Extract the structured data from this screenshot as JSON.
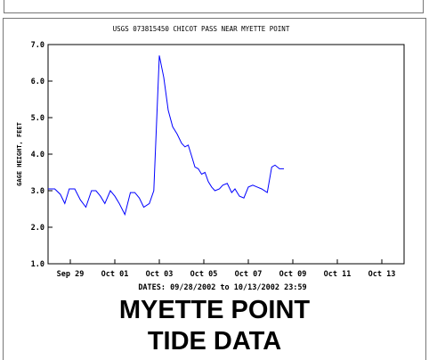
{
  "chart_data": {
    "type": "line",
    "title": "USGS 073815450 CHICOT PASS NEAR MYETTE POINT",
    "xlabel": "DATES: 09/28/2002 to 10/13/2002 23:59",
    "ylabel": "GAGE HEIGHT, FEET",
    "xlim": [
      0,
      16
    ],
    "ylim": [
      1.0,
      7.0
    ],
    "yticks": [
      1.0,
      2.0,
      3.0,
      4.0,
      5.0,
      6.0,
      7.0
    ],
    "ytick_labels": [
      "1.0",
      "2.0",
      "3.0",
      "4.0",
      "5.0",
      "6.0",
      "7.0"
    ],
    "xticks": [
      1,
      3,
      5,
      7,
      9,
      11,
      13,
      15
    ],
    "xtick_labels": [
      "Sep 29",
      "Oct 01",
      "Oct 03",
      "Oct 05",
      "Oct 07",
      "Oct 09",
      "Oct 11",
      "Oct 13"
    ],
    "grid": false,
    "series": [
      {
        "color": "#0000ff",
        "x": [
          0.0,
          0.3,
          0.55,
          0.75,
          0.95,
          1.2,
          1.45,
          1.7,
          1.95,
          2.15,
          2.35,
          2.55,
          2.8,
          3.0,
          3.2,
          3.45,
          3.7,
          3.9,
          4.1,
          4.3,
          4.55,
          4.75,
          5.0,
          5.2,
          5.4,
          5.6,
          5.8,
          6.0,
          6.15,
          6.3,
          6.45,
          6.6,
          6.75,
          6.9,
          7.05,
          7.2,
          7.35,
          7.5,
          7.7,
          7.85,
          8.05,
          8.25,
          8.4,
          8.6,
          8.8,
          9.0,
          9.2,
          9.4,
          9.6,
          9.85,
          10.05,
          10.2,
          10.4,
          10.6
        ],
        "y": [
          3.05,
          3.05,
          2.9,
          2.65,
          3.05,
          3.05,
          2.75,
          2.55,
          3.0,
          3.0,
          2.85,
          2.65,
          3.0,
          2.85,
          2.65,
          2.35,
          2.95,
          2.95,
          2.8,
          2.55,
          2.65,
          3.0,
          6.7,
          6.1,
          5.2,
          4.75,
          4.55,
          4.3,
          4.2,
          4.25,
          3.95,
          3.65,
          3.6,
          3.45,
          3.5,
          3.25,
          3.1,
          3.0,
          3.05,
          3.15,
          3.2,
          2.95,
          3.05,
          2.85,
          2.8,
          3.1,
          3.15,
          3.1,
          3.05,
          2.95,
          3.65,
          3.7,
          3.6,
          3.6
        ]
      }
    ]
  },
  "caption": {
    "line1": "MYETTE POINT",
    "line2": "TIDE DATA"
  }
}
